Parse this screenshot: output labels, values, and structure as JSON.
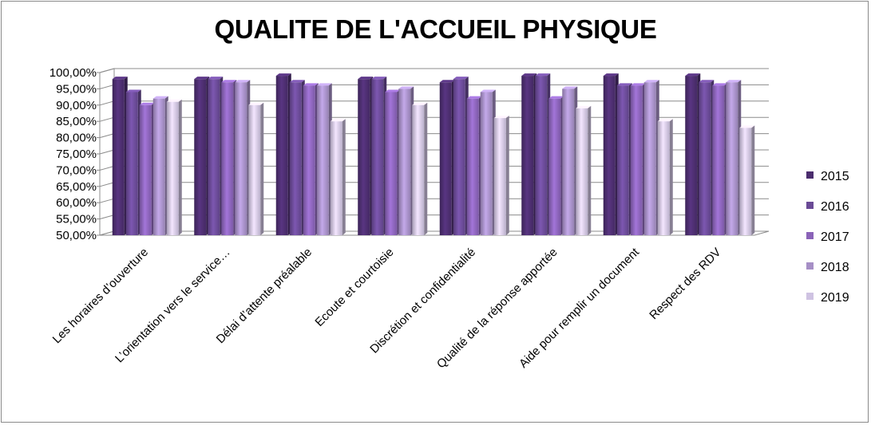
{
  "chart_data": {
    "type": "bar",
    "title": "QUALITE DE L'ACCUEIL PHYSIQUE",
    "xlabel": "",
    "ylabel": "",
    "ylim": [
      0.5,
      1.0
    ],
    "yticks": [
      "50,00%",
      "55,00%",
      "60,00%",
      "65,00%",
      "70,00%",
      "75,00%",
      "80,00%",
      "85,00%",
      "90,00%",
      "95,00%",
      "100,00%"
    ],
    "grid": true,
    "legend_position": "right",
    "categories": [
      "Les horaires d’ouverture",
      "L’orientation vers le service…",
      "Délai d’attente préalable",
      "Ecoute et courtoisie",
      "Discrétion et confidentialité",
      "Qualité de la réponse apportée",
      "Aide pour remplir un document",
      "Respect des RDV"
    ],
    "series": [
      {
        "name": "2015",
        "color": "#4b2d6e",
        "values": [
          0.98,
          0.98,
          0.99,
          0.98,
          0.97,
          0.99,
          0.99,
          0.99
        ]
      },
      {
        "name": "2016",
        "color": "#6a4a96",
        "values": [
          0.94,
          0.98,
          0.97,
          0.98,
          0.98,
          0.99,
          0.96,
          0.97
        ]
      },
      {
        "name": "2017",
        "color": "#8a63b8",
        "values": [
          0.9,
          0.97,
          0.96,
          0.94,
          0.92,
          0.92,
          0.96,
          0.96
        ]
      },
      {
        "name": "2018",
        "color": "#a68fc6",
        "values": [
          0.92,
          0.97,
          0.96,
          0.95,
          0.94,
          0.95,
          0.97,
          0.97
        ]
      },
      {
        "name": "2019",
        "color": "#cfc3e2",
        "values": [
          0.91,
          0.9,
          0.85,
          0.9,
          0.86,
          0.89,
          0.85,
          0.83
        ]
      }
    ]
  }
}
